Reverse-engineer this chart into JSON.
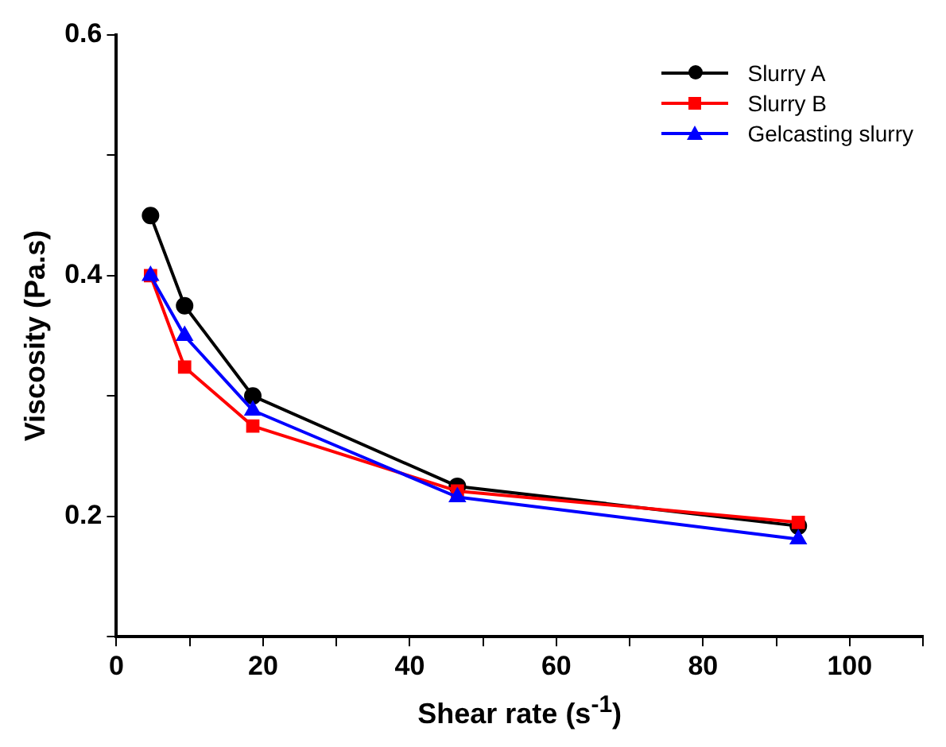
{
  "chart_data": {
    "type": "line",
    "xlabel": "Shear rate (s$^{-1}$)",
    "ylabel": "Viscosity (Pa.s)",
    "x": [
      4.65,
      9.3,
      18.6,
      46.5,
      93
    ],
    "series": [
      {
        "name": "Slurry A",
        "color": "#000000",
        "marker": "circle",
        "values": [
          0.45,
          0.375,
          0.3,
          0.225,
          0.192
        ]
      },
      {
        "name": "Slurry B",
        "color": "#ff0000",
        "marker": "square",
        "values": [
          0.4,
          0.324,
          0.275,
          0.221,
          0.195
        ]
      },
      {
        "name": "Gelcasting slurry",
        "color": "#0000ff",
        "marker": "triangle",
        "values": [
          0.4,
          0.35,
          0.288,
          0.216,
          0.181
        ]
      }
    ],
    "xlim": [
      0,
      110
    ],
    "xticks": [
      0,
      {
        "value": 10,
        "label": null
      },
      20,
      {
        "value": 30,
        "label": null
      },
      40,
      {
        "value": 50,
        "label": null
      },
      60,
      {
        "value": 70,
        "label": null
      },
      80,
      {
        "value": 90,
        "label": null
      },
      100,
      {
        "value": 110,
        "label": null
      }
    ],
    "ylim": [
      0.1,
      0.6
    ],
    "yticks": [
      {
        "value": 0.1,
        "label": null
      },
      0.2,
      {
        "value": 0.3,
        "label": null
      },
      0.4,
      {
        "value": 0.5,
        "label": null
      },
      0.6
    ],
    "grid": false,
    "legend": "top right",
    "line_style": "solid"
  }
}
